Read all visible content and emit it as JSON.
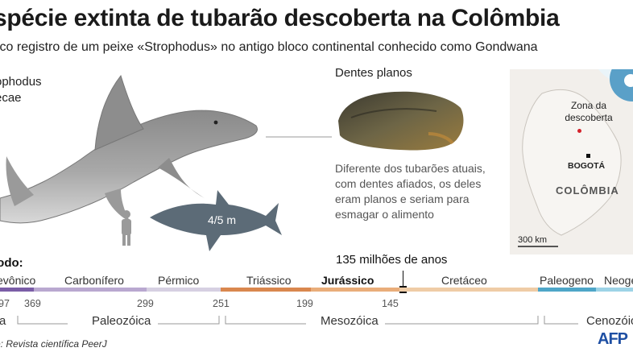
{
  "header": {
    "title": "spécie extinta de tubarão descoberta na Colômbia",
    "subtitle": "ico registro de um peixe «Strophodus» no antigo bloco continental conhecido como Gondwana"
  },
  "species": {
    "line1": "ophodus",
    "line2": "ecae",
    "size_label": "4/5 m"
  },
  "teeth": {
    "label": "Dentes planos",
    "description": "Diferente dos tubarões atuais, com dentes afiados, os deles eram planos e seriam para esmagar o alimento"
  },
  "map": {
    "zone_label": "Zona da descoberta",
    "capital": "BOGOTÁ",
    "country": "COLÔMBIA",
    "scale": "300 km"
  },
  "timeline": {
    "periodo_label": "íodo:",
    "mya_label": "135 milhões de anos",
    "periods": [
      {
        "name": "evônico",
        "bold": false
      },
      {
        "name": "Carbonífero",
        "bold": false
      },
      {
        "name": "Pérmico",
        "bold": false
      },
      {
        "name": "Triássico",
        "bold": false
      },
      {
        "name": "Jurássico",
        "bold": true
      },
      {
        "name": "Cretáceo",
        "bold": false
      },
      {
        "name": "Paleogeno",
        "bold": false
      },
      {
        "name": "Neoge",
        "bold": false
      }
    ],
    "bar_colors": [
      "#7b5ea7",
      "#b9a8d0",
      "#d6d0e2",
      "#d9874e",
      "#e9ad7a",
      "#efcca6",
      "#4ea6c8",
      "#9dd3e6"
    ],
    "ticks": [
      "97",
      "369",
      "299",
      "251",
      "199",
      "145"
    ],
    "eras": [
      "ra",
      "Paleozóica",
      "Mesozóica",
      "Cenozóic"
    ]
  },
  "footer": {
    "source": "e: Revista científica PeerJ",
    "logo": "AFP"
  }
}
